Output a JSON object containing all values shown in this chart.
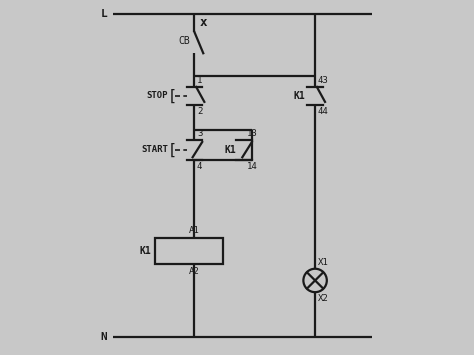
{
  "bg_color": "#c8c8c8",
  "inner_bg": "#e8e8e8",
  "line_color": "#1a1a1a",
  "lw": 1.6,
  "fig_w": 4.74,
  "fig_h": 3.55,
  "dpi": 100,
  "L_label": "L",
  "N_label": "N",
  "CB_label": "CB",
  "STOP_label": "STOP",
  "START_label": "START",
  "K1_coil_label": "K1",
  "A1_label": "A1",
  "A2_label": "A2",
  "K1_nc_label": "K1",
  "K1_no_label": "K1",
  "X1_label": "X1",
  "X2_label": "X2",
  "num_1": "1",
  "num_2": "2",
  "num_3": "3",
  "num_4": "4",
  "num_13": "13",
  "num_14": "14",
  "num_43": "43",
  "num_44": "44",
  "xlim": [
    0,
    10
  ],
  "ylim": [
    0,
    10
  ]
}
